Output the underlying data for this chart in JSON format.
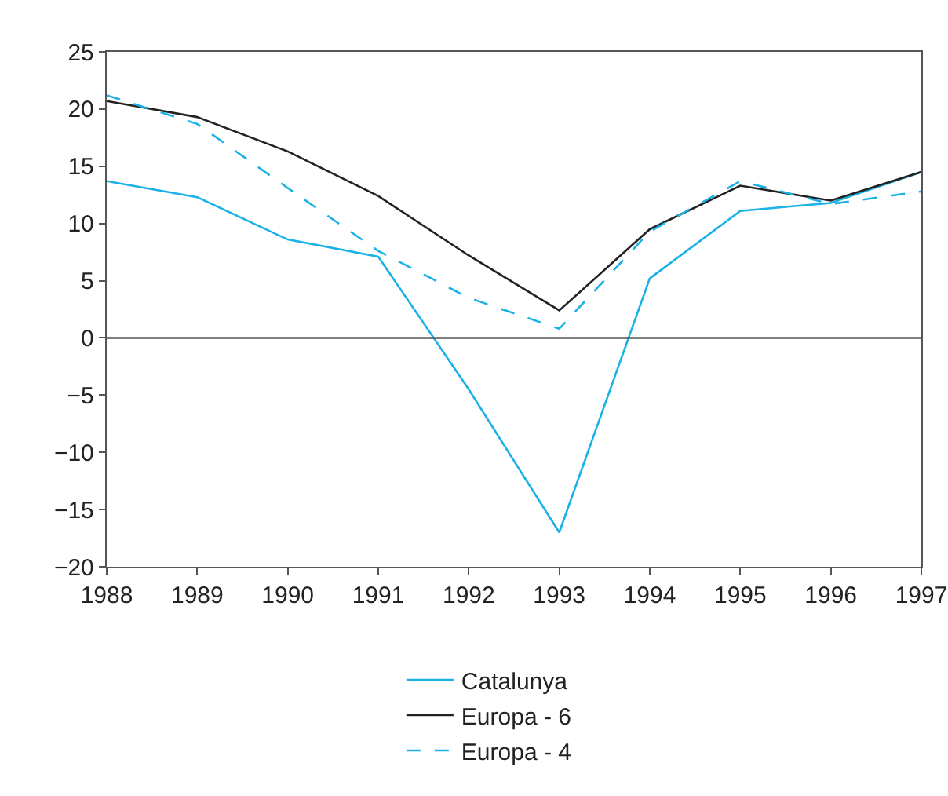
{
  "chart_data": {
    "type": "line",
    "x": [
      1988,
      1989,
      1990,
      1991,
      1992,
      1993,
      1994,
      1995,
      1996,
      1997
    ],
    "series": [
      {
        "name": "Catalunya",
        "color": "#1ab0e8",
        "line_style": "solid",
        "values": [
          13.7,
          12.3,
          8.6,
          7.1,
          -4.5,
          -17.0,
          5.2,
          11.1,
          11.8,
          14.5
        ]
      },
      {
        "name": "Europa - 6",
        "color": "#222222",
        "line_style": "solid",
        "values": [
          20.7,
          19.3,
          16.3,
          12.4,
          7.2,
          2.4,
          9.5,
          13.3,
          12.0,
          14.5
        ]
      },
      {
        "name": "Europa - 4",
        "color": "#1ab0e8",
        "line_style": "dashed",
        "values": [
          21.2,
          18.7,
          13.1,
          7.6,
          3.5,
          0.8,
          9.3,
          13.7,
          11.7,
          12.8
        ]
      }
    ],
    "xlim": [
      1988,
      1997
    ],
    "xticks": [
      1988,
      1989,
      1990,
      1991,
      1992,
      1993,
      1994,
      1995,
      1996,
      1997
    ],
    "ylim": [
      -20,
      25
    ],
    "yticks": [
      -20,
      -15,
      -10,
      -5,
      0,
      5,
      10,
      15,
      20,
      25
    ],
    "ref_lines": [
      {
        "axis": "y",
        "value": 0,
        "color": "#555555"
      }
    ],
    "grid": false,
    "legend": "bottom",
    "marker": "none"
  }
}
